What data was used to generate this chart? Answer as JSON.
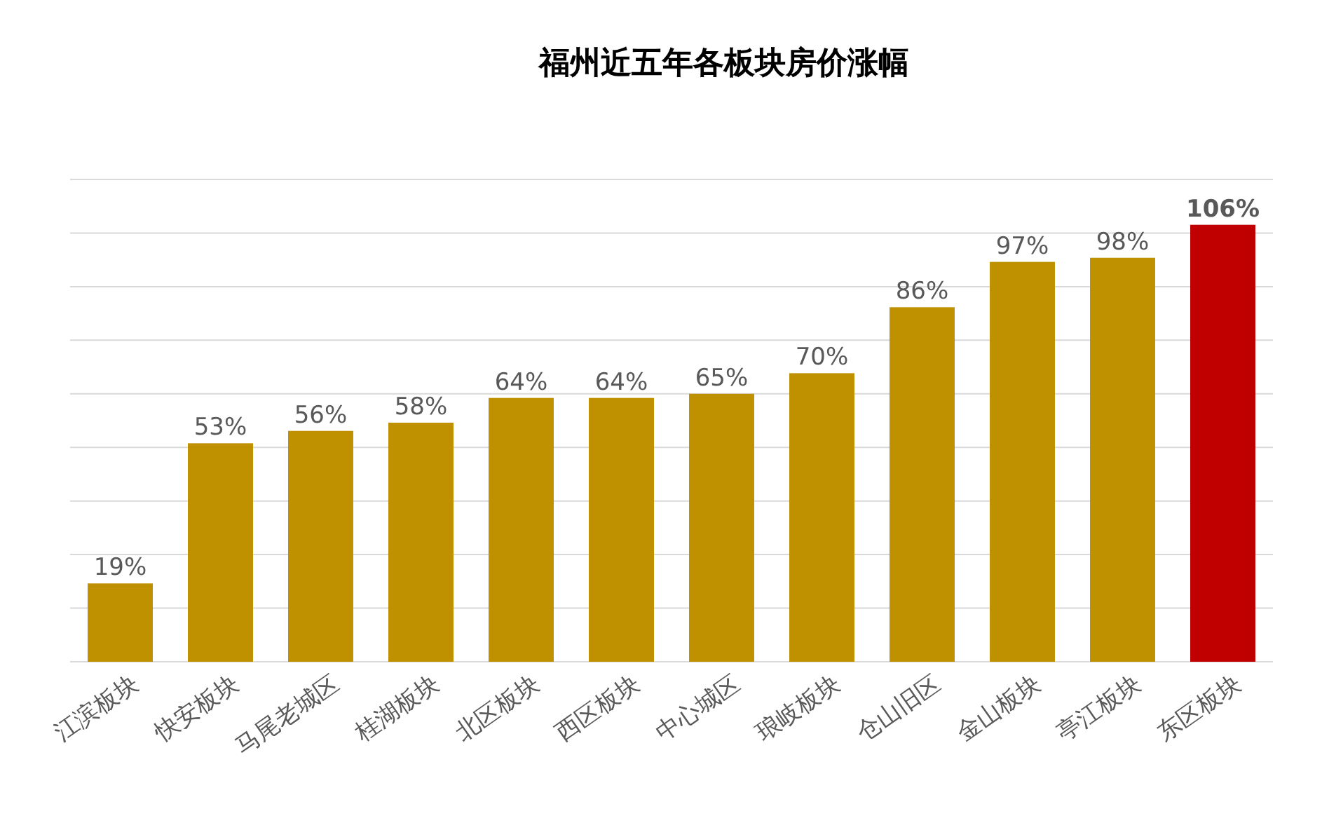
{
  "chart_data": {
    "type": "bar",
    "title": "福州近五年各板块房价涨幅",
    "categories": [
      "江滨板块",
      "快安板块",
      "马尾老城区",
      "桂湖板块",
      "北区板块",
      "西区板块",
      "中心城区",
      "琅岐板块",
      "仓山旧区",
      "金山板块",
      "亭江板块",
      "东区板块"
    ],
    "values": [
      19,
      53,
      56,
      58,
      64,
      64,
      65,
      70,
      86,
      97,
      98,
      106
    ],
    "value_labels": [
      "19%",
      "53%",
      "56%",
      "58%",
      "64%",
      "64%",
      "65%",
      "70%",
      "86%",
      "97%",
      "98%",
      "106%"
    ],
    "colors": [
      "#bf9000",
      "#bf9000",
      "#bf9000",
      "#bf9000",
      "#bf9000",
      "#bf9000",
      "#bf9000",
      "#bf9000",
      "#bf9000",
      "#bf9000",
      "#bf9000",
      "#c00000"
    ],
    "ylim": [
      0,
      117
    ],
    "yticks": [
      {
        "value": 0,
        "label": null
      },
      {
        "value": 13,
        "label": null
      },
      {
        "value": 26,
        "label": null
      },
      {
        "value": 39,
        "label": null
      },
      {
        "value": 52,
        "label": null
      },
      {
        "value": 65,
        "label": null
      },
      {
        "value": 78,
        "label": null
      },
      {
        "value": 91,
        "label": null
      },
      {
        "value": 104,
        "label": null
      },
      {
        "value": 117,
        "label": null
      }
    ],
    "tick_labels": "x",
    "grid": "y"
  }
}
